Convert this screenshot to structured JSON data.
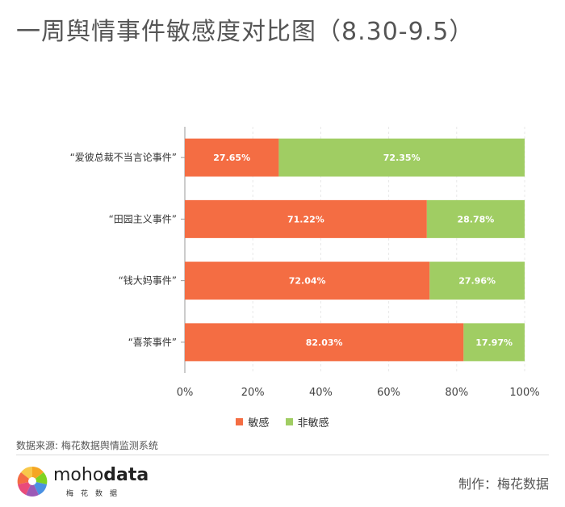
{
  "title": "一周舆情事件敏感度对比图（8.30-9.5）",
  "colors": {
    "sensitive": "#f46d43",
    "non_sensitive": "#a0cd63",
    "grid": "#e8e8e8",
    "axis": "#999999"
  },
  "chart_data": {
    "type": "bar",
    "orientation": "horizontal",
    "stacked": true,
    "categories": [
      "“爱彼总裁不当言论事件”",
      "“田园主义事件”",
      "“钱大妈事件”",
      "“喜茶事件”"
    ],
    "series": [
      {
        "name": "敏感",
        "values": [
          27.65,
          71.22,
          72.04,
          82.03
        ],
        "labels": [
          "27.65%",
          "71.22%",
          "72.04%",
          "82.03%"
        ]
      },
      {
        "name": "非敏感",
        "values": [
          72.35,
          28.78,
          27.96,
          17.97
        ],
        "labels": [
          "72.35%",
          "28.78%",
          "27.96%",
          "17.97%"
        ]
      }
    ],
    "xlim": [
      0,
      100
    ],
    "xticks": [
      "0%",
      "20%",
      "40%",
      "60%",
      "80%",
      "100%"
    ],
    "legend_position": "bottom",
    "grid": true
  },
  "legend": {
    "sensitive": "敏感",
    "non_sensitive": "非敏感"
  },
  "source": "数据来源: 梅花数据舆情监测系统",
  "logo": {
    "prefix": "moho",
    "suffix": "data",
    "sub": "梅花数据"
  },
  "credit": "制作：梅花数据"
}
